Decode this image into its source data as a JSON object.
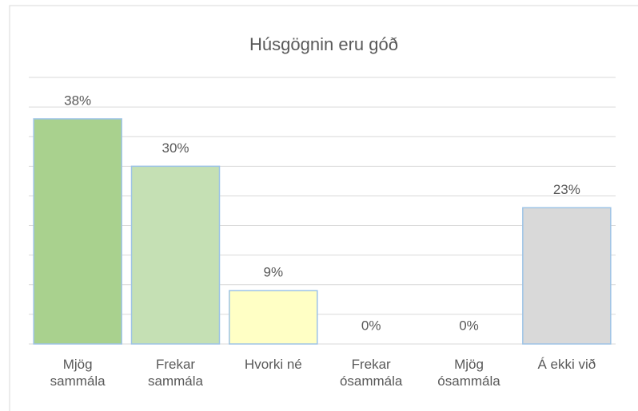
{
  "chart_data": {
    "type": "bar",
    "title": "Húsgögnin eru góð",
    "categories": [
      "Mjög sammála",
      "Frekar sammála",
      "Hvorki né",
      "Frekar ósammála",
      "Mjög ósammála",
      "Á ekki við"
    ],
    "values": [
      38,
      30,
      9,
      0,
      0,
      23
    ],
    "value_labels": [
      "38%",
      "30%",
      "9%",
      "0%",
      "0%",
      "23%"
    ],
    "colors": [
      "#a9d18e",
      "#c5e0b4",
      "#ffffc5",
      "#e2efd9",
      "#e2efd9",
      "#d9d9d9"
    ],
    "ylim": [
      0,
      45
    ],
    "yticks": [
      0,
      5,
      10,
      15,
      20,
      25,
      30,
      35,
      40,
      45
    ],
    "grid": true
  }
}
